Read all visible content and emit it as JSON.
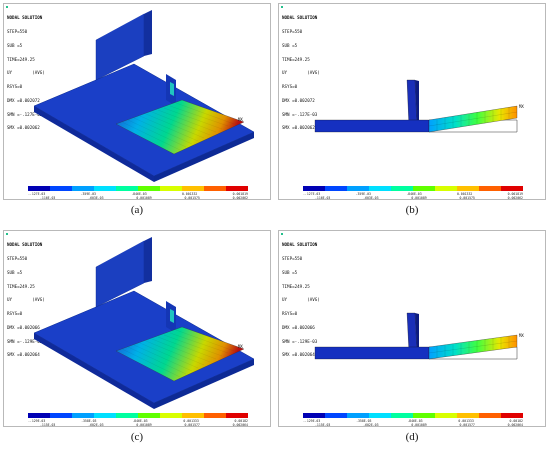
{
  "panels": [
    {
      "id": "a",
      "label": "(a)",
      "header": {
        "title": "NODAL SOLUTION",
        "lines": [
          "STEP=550",
          "SUB =5",
          "TIME=249.25",
          "UY        (AVG)",
          "RSYS=0",
          "DMX =0.002072",
          "SMN =-.127E-03",
          "SMX =0.002062"
        ]
      },
      "legend": {
        "top": [
          "-.127E-03",
          ".359E-03",
          ".846E-03",
          "0.001332",
          "0.001819"
        ],
        "bottom": [
          ".116E-03",
          ".603E-03",
          "0.001089",
          "0.001575",
          "0.002062"
        ]
      },
      "view": "iso"
    },
    {
      "id": "b",
      "label": "(b)",
      "header": {
        "title": "NODAL SOLUTION",
        "lines": [
          "STEP=550",
          "SUB =5",
          "TIME=249.25",
          "UY        (AVG)",
          "RSYS=0",
          "DMX =0.002072",
          "SMN =-.127E-03",
          "SMX =0.002062"
        ]
      },
      "legend": {
        "top": [
          "-.127E-03",
          ".359E-03",
          ".846E-03",
          "0.001332",
          "0.001819"
        ],
        "bottom": [
          ".116E-03",
          ".603E-03",
          "0.001089",
          "0.001575",
          "0.002062"
        ]
      },
      "view": "side"
    },
    {
      "id": "c",
      "label": "(c)",
      "header": {
        "title": "NODAL SOLUTION",
        "lines": [
          "STEP=550",
          "SUB =5",
          "TIME=249.25",
          "UY        (AVG)",
          "RSYS=0",
          "DMX =0.002066",
          "SMN =-.129E-03",
          "SMX =0.002064"
        ]
      },
      "legend": {
        "top": [
          "-.129E-03",
          ".358E-03",
          ".846E-03",
          "0.001333",
          "0.00182"
        ],
        "bottom": [
          ".115E-03",
          ".602E-03",
          "0.001089",
          "0.001577",
          "0.002064"
        ]
      },
      "view": "iso"
    },
    {
      "id": "d",
      "label": "(d)",
      "header": {
        "title": "NODAL SOLUTION",
        "lines": [
          "STEP=550",
          "SUB =5",
          "TIME=249.25",
          "UY        (AVG)",
          "RSYS=0",
          "DMX =0.002066",
          "SMN =-.129E-03",
          "SMX =0.002064"
        ]
      },
      "legend": {
        "top": [
          "-.129E-03",
          ".358E-03",
          ".846E-03",
          "0.001333",
          "0.00182"
        ],
        "bottom": [
          ".115E-03",
          ".602E-03",
          "0.001089",
          "0.001577",
          "0.002064"
        ]
      },
      "view": "side"
    }
  ],
  "mx_label": "MX",
  "colors": [
    "#0000b4",
    "#0046ff",
    "#00a0ff",
    "#00e0ff",
    "#00ffa0",
    "#60ff00",
    "#d8ff00",
    "#ffc000",
    "#ff6000",
    "#e00000"
  ]
}
